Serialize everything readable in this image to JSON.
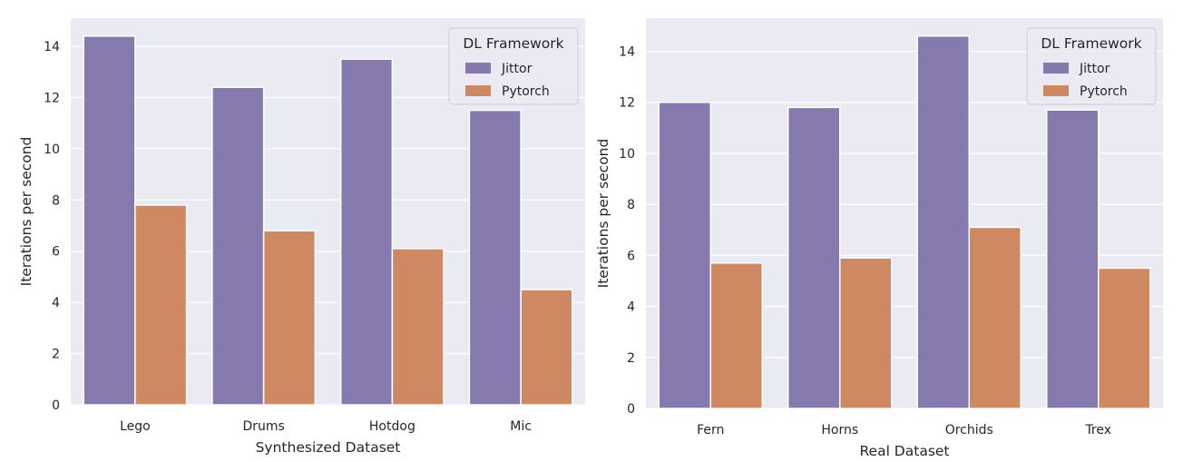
{
  "legend_title": "DL Framework",
  "colors": {
    "background": "#eaeaf2",
    "grid": "#ffffff",
    "Jittor": "#8579ad",
    "Pytorch": "#ce8862"
  },
  "chart_data": [
    {
      "type": "bar",
      "xlabel": "Synthesized Dataset",
      "ylabel": "Iterations per second",
      "categories": [
        "Lego",
        "Drums",
        "Hotdog",
        "Mic"
      ],
      "series": [
        {
          "name": "Jittor",
          "values": [
            14.4,
            12.4,
            13.5,
            11.5
          ]
        },
        {
          "name": "Pytorch",
          "values": [
            7.8,
            6.8,
            6.1,
            4.5
          ]
        }
      ],
      "ylim": [
        0,
        15.1
      ],
      "yticks": [
        0,
        2,
        4,
        6,
        8,
        10,
        12,
        14
      ],
      "grid": true,
      "legend": "top-right"
    },
    {
      "type": "bar",
      "xlabel": "Real Dataset",
      "ylabel": "Iterations per second",
      "categories": [
        "Fern",
        "Horns",
        "Orchids",
        "Trex"
      ],
      "series": [
        {
          "name": "Jittor",
          "values": [
            12.0,
            11.8,
            14.6,
            11.7
          ]
        },
        {
          "name": "Pytorch",
          "values": [
            5.7,
            5.9,
            7.1,
            5.5
          ]
        }
      ],
      "ylim": [
        0,
        15.3
      ],
      "yticks": [
        0,
        2,
        4,
        6,
        8,
        10,
        12,
        14
      ],
      "grid": true,
      "legend": "top-right"
    }
  ]
}
